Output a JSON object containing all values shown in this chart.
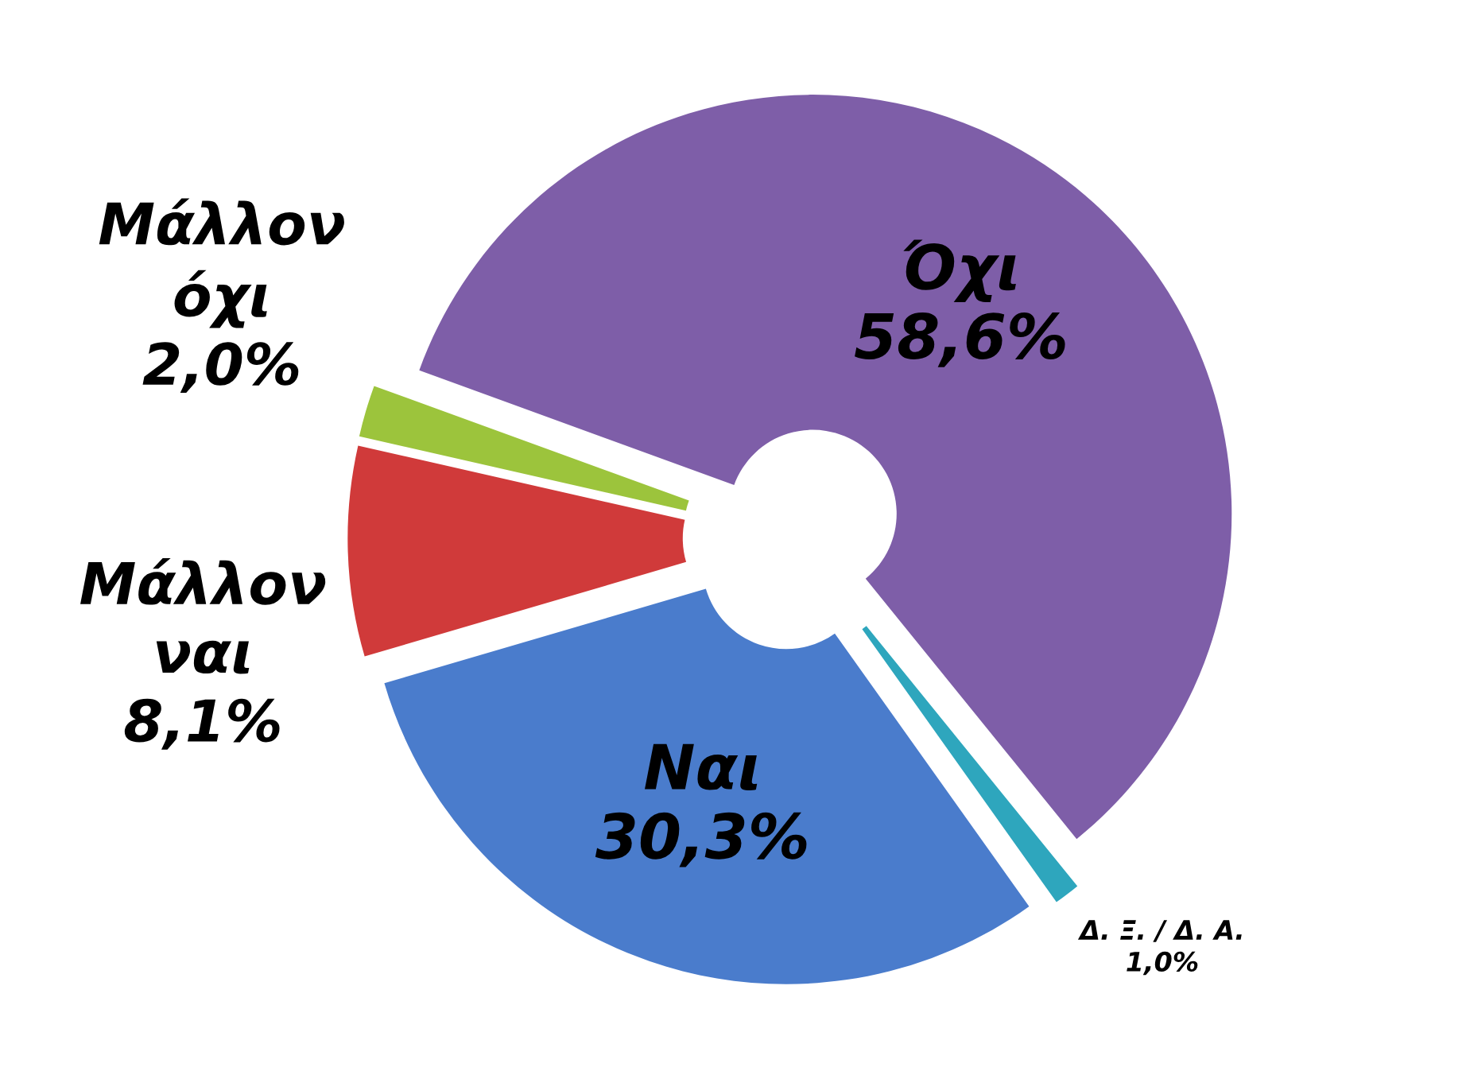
{
  "chart_data": {
    "type": "donut",
    "categories": [
      "Όχι",
      "Δ. Ξ. / Δ. Α.",
      "Ναι",
      "Μάλλον ναι",
      "Μάλλον όχι"
    ],
    "values": [
      58.6,
      1.0,
      30.3,
      8.1,
      2.0
    ],
    "value_labels": [
      "58,6%",
      "1,0%",
      "30,3%",
      "8,1%",
      "2,0%"
    ],
    "colors": [
      "#7e5ea8",
      "#2ea6bd",
      "#4a7ccc",
      "#d03a3a",
      "#9cc43c"
    ],
    "legend": false
  }
}
